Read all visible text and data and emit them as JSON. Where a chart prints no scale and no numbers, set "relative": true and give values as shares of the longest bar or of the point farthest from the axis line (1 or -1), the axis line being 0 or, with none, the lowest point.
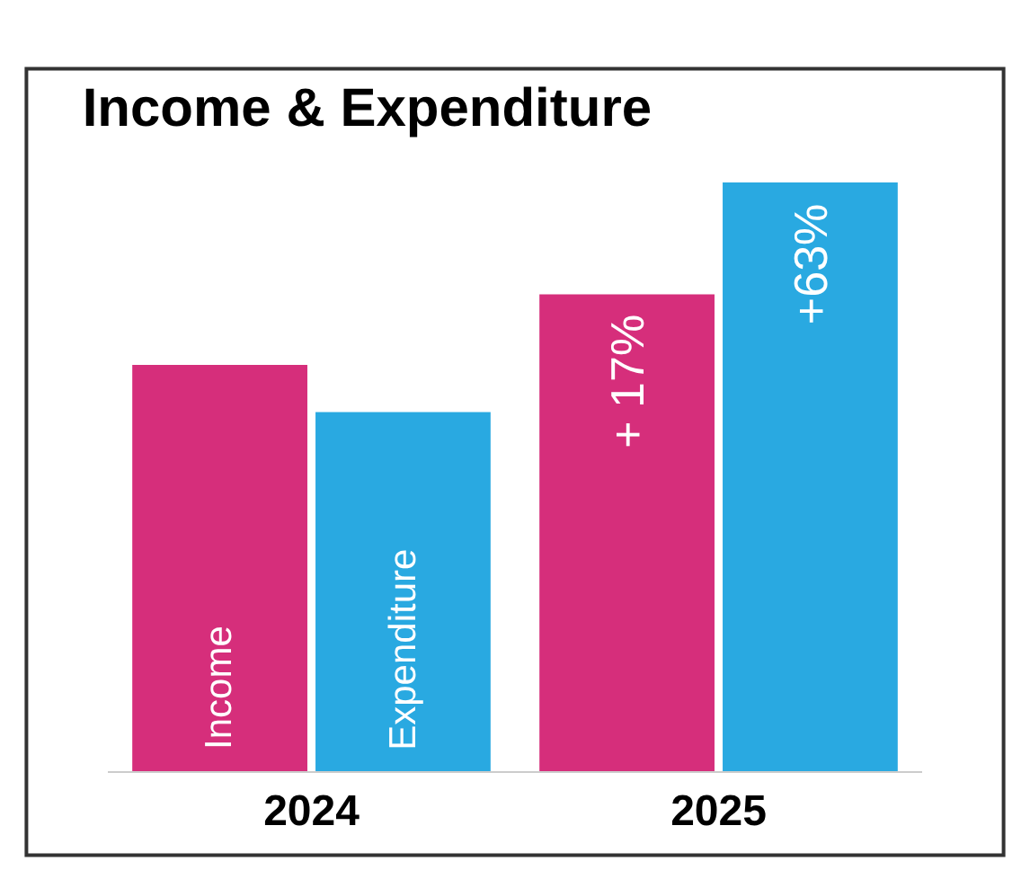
{
  "chart_data": {
    "type": "bar",
    "title": "Income & Expenditure",
    "categories": [
      "2024",
      "2025"
    ],
    "relative": true,
    "legend": false,
    "series": [
      {
        "name": "Income",
        "color": "#d62e7b",
        "values": [
          0.69,
          0.81
        ]
      },
      {
        "name": "Expenditure",
        "color": "#29a9e1",
        "values": [
          0.61,
          1
        ]
      }
    ],
    "annotations": [
      {
        "text": "+ 17%",
        "x": "2025",
        "y": 0.81
      },
      {
        "text": "+63%",
        "x": "2025",
        "y": 1
      }
    ]
  }
}
